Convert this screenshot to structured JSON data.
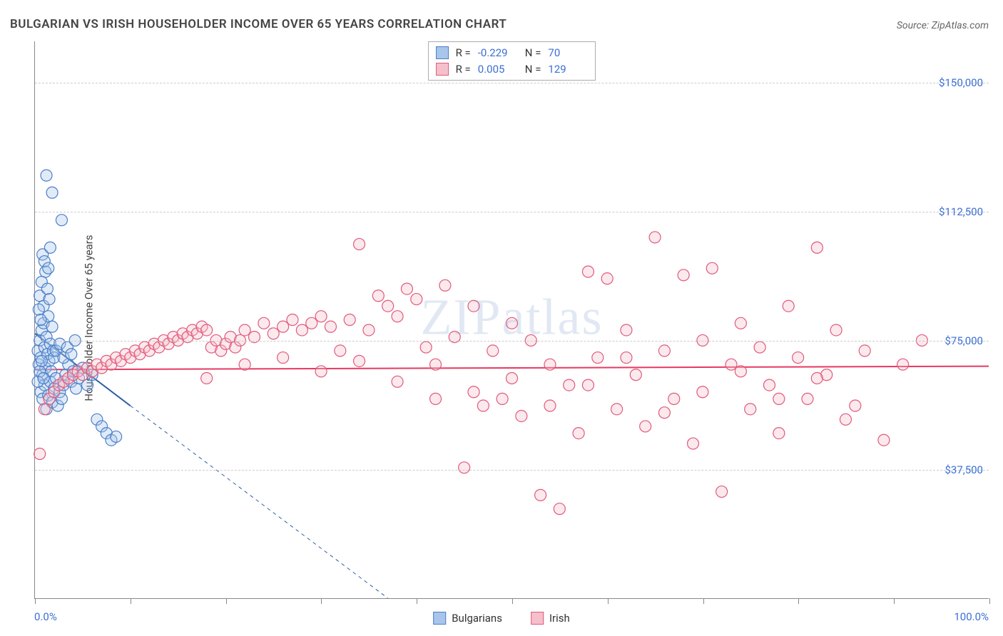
{
  "title": "BULGARIAN VS IRISH HOUSEHOLDER INCOME OVER 65 YEARS CORRELATION CHART",
  "source": "Source: ZipAtlas.com",
  "watermark": "ZIPatlas",
  "chart": {
    "type": "scatter",
    "ylabel": "Householder Income Over 65 years",
    "xlim": [
      0,
      100
    ],
    "ylim": [
      0,
      162000
    ],
    "x_axis_min_label": "0.0%",
    "x_axis_max_label": "100.0%",
    "xtick_positions": [
      0,
      10,
      20,
      30,
      40,
      50,
      60,
      70,
      80,
      90,
      100
    ],
    "y_gridlines": [
      {
        "value": 37500,
        "label": "$37,500"
      },
      {
        "value": 75000,
        "label": "$75,000"
      },
      {
        "value": 112500,
        "label": "$112,500"
      },
      {
        "value": 150000,
        "label": "$150,000"
      }
    ],
    "background_color": "#ffffff",
    "grid_color": "#cccccc",
    "axis_color": "#888888",
    "label_color": "#3b6fd6",
    "title_fontsize": 17,
    "axis_label_fontsize": 15,
    "marker_radius": 8,
    "marker_fill_opacity": 0.35,
    "marker_stroke_width": 1.2
  },
  "series": [
    {
      "name": "Bulgarians",
      "color_fill": "#a8c5ec",
      "color_stroke": "#4b7fc9",
      "trend": {
        "x1": 0,
        "y1": 77000,
        "x2_solid": 10,
        "y2_solid": 56000,
        "x2_dash": 37,
        "y2_dash": 0,
        "stroke": "#2f5fa8",
        "width": 2
      },
      "R": "-0.229",
      "N": "70",
      "points": [
        [
          0.3,
          72000
        ],
        [
          0.4,
          68000
        ],
        [
          0.5,
          75000
        ],
        [
          0.6,
          70000
        ],
        [
          0.7,
          78000
        ],
        [
          0.8,
          65000
        ],
        [
          0.9,
          80000
        ],
        [
          1.0,
          73000
        ],
        [
          1.1,
          67000
        ],
        [
          1.2,
          76000
        ],
        [
          1.3,
          71000
        ],
        [
          1.4,
          82000
        ],
        [
          1.5,
          69000
        ],
        [
          1.6,
          74000
        ],
        [
          1.7,
          66000
        ],
        [
          1.8,
          79000
        ],
        [
          1.9,
          72000
        ],
        [
          2.0,
          70000
        ],
        [
          0.5,
          88000
        ],
        [
          0.7,
          92000
        ],
        [
          0.9,
          85000
        ],
        [
          1.1,
          95000
        ],
        [
          1.3,
          90000
        ],
        [
          1.5,
          87000
        ],
        [
          0.6,
          60000
        ],
        [
          0.8,
          58000
        ],
        [
          1.0,
          62000
        ],
        [
          1.2,
          55000
        ],
        [
          1.4,
          59000
        ],
        [
          1.6,
          63000
        ],
        [
          1.8,
          57000
        ],
        [
          2.0,
          61000
        ],
        [
          2.2,
          64000
        ],
        [
          2.4,
          56000
        ],
        [
          2.6,
          60000
        ],
        [
          2.8,
          58000
        ],
        [
          3.0,
          62000
        ],
        [
          3.2,
          65000
        ],
        [
          3.5,
          68000
        ],
        [
          3.8,
          63000
        ],
        [
          4.0,
          66000
        ],
        [
          4.3,
          61000
        ],
        [
          4.6,
          64000
        ],
        [
          5.0,
          67000
        ],
        [
          5.5,
          62000
        ],
        [
          6.0,
          65000
        ],
        [
          6.5,
          52000
        ],
        [
          7.0,
          50000
        ],
        [
          7.5,
          48000
        ],
        [
          8.0,
          46000
        ],
        [
          8.5,
          47000
        ],
        [
          1.8,
          118000
        ],
        [
          2.8,
          110000
        ],
        [
          1.2,
          123000
        ],
        [
          0.8,
          100000
        ],
        [
          1.0,
          98000
        ],
        [
          1.4,
          96000
        ],
        [
          1.6,
          102000
        ],
        [
          0.4,
          84000
        ],
        [
          0.6,
          81000
        ],
        [
          2.2,
          72000
        ],
        [
          2.6,
          74000
        ],
        [
          3.0,
          70000
        ],
        [
          3.4,
          73000
        ],
        [
          3.8,
          71000
        ],
        [
          4.2,
          75000
        ],
        [
          0.3,
          63000
        ],
        [
          0.5,
          66000
        ],
        [
          0.7,
          69000
        ],
        [
          0.9,
          64000
        ]
      ]
    },
    {
      "name": "Irish",
      "color_fill": "#f5c0cc",
      "color_stroke": "#e05a7a",
      "trend": {
        "x1": 0,
        "y1": 66500,
        "x2_solid": 100,
        "y2_solid": 67500,
        "stroke": "#e63962",
        "width": 2
      },
      "R": "0.005",
      "N": "129",
      "points": [
        [
          0.5,
          42000
        ],
        [
          1.0,
          55000
        ],
        [
          1.5,
          58000
        ],
        [
          2.0,
          60000
        ],
        [
          2.5,
          62000
        ],
        [
          3.0,
          63000
        ],
        [
          3.5,
          64000
        ],
        [
          4.0,
          65000
        ],
        [
          4.5,
          66000
        ],
        [
          5.0,
          65000
        ],
        [
          5.5,
          67000
        ],
        [
          6.0,
          66000
        ],
        [
          6.5,
          68000
        ],
        [
          7.0,
          67000
        ],
        [
          7.5,
          69000
        ],
        [
          8.0,
          68000
        ],
        [
          8.5,
          70000
        ],
        [
          9.0,
          69000
        ],
        [
          9.5,
          71000
        ],
        [
          10.0,
          70000
        ],
        [
          10.5,
          72000
        ],
        [
          11.0,
          71000
        ],
        [
          11.5,
          73000
        ],
        [
          12.0,
          72000
        ],
        [
          12.5,
          74000
        ],
        [
          13.0,
          73000
        ],
        [
          13.5,
          75000
        ],
        [
          14.0,
          74000
        ],
        [
          14.5,
          76000
        ],
        [
          15.0,
          75000
        ],
        [
          15.5,
          77000
        ],
        [
          16.0,
          76000
        ],
        [
          16.5,
          78000
        ],
        [
          17.0,
          77000
        ],
        [
          17.5,
          79000
        ],
        [
          18.0,
          78000
        ],
        [
          18.5,
          73000
        ],
        [
          19.0,
          75000
        ],
        [
          19.5,
          72000
        ],
        [
          20.0,
          74000
        ],
        [
          20.5,
          76000
        ],
        [
          21.0,
          73000
        ],
        [
          21.5,
          75000
        ],
        [
          22.0,
          78000
        ],
        [
          23.0,
          76000
        ],
        [
          24.0,
          80000
        ],
        [
          25.0,
          77000
        ],
        [
          26.0,
          79000
        ],
        [
          27.0,
          81000
        ],
        [
          28.0,
          78000
        ],
        [
          29.0,
          80000
        ],
        [
          30.0,
          82000
        ],
        [
          31.0,
          79000
        ],
        [
          32.0,
          72000
        ],
        [
          33.0,
          81000
        ],
        [
          34.0,
          103000
        ],
        [
          35.0,
          78000
        ],
        [
          36.0,
          88000
        ],
        [
          37.0,
          85000
        ],
        [
          38.0,
          82000
        ],
        [
          39.0,
          90000
        ],
        [
          40.0,
          87000
        ],
        [
          41.0,
          73000
        ],
        [
          42.0,
          68000
        ],
        [
          43.0,
          91000
        ],
        [
          44.0,
          76000
        ],
        [
          45.0,
          38000
        ],
        [
          46.0,
          85000
        ],
        [
          47.0,
          56000
        ],
        [
          48.0,
          72000
        ],
        [
          49.0,
          58000
        ],
        [
          50.0,
          80000
        ],
        [
          51.0,
          53000
        ],
        [
          52.0,
          75000
        ],
        [
          53.0,
          30000
        ],
        [
          54.0,
          68000
        ],
        [
          55.0,
          26000
        ],
        [
          56.0,
          62000
        ],
        [
          57.0,
          48000
        ],
        [
          58.0,
          95000
        ],
        [
          59.0,
          70000
        ],
        [
          60.0,
          93000
        ],
        [
          61.0,
          55000
        ],
        [
          62.0,
          78000
        ],
        [
          63.0,
          65000
        ],
        [
          64.0,
          50000
        ],
        [
          65.0,
          105000
        ],
        [
          66.0,
          72000
        ],
        [
          67.0,
          58000
        ],
        [
          68.0,
          94000
        ],
        [
          69.0,
          45000
        ],
        [
          70.0,
          75000
        ],
        [
          71.0,
          96000
        ],
        [
          72.0,
          31000
        ],
        [
          73.0,
          68000
        ],
        [
          74.0,
          80000
        ],
        [
          75.0,
          55000
        ],
        [
          76.0,
          73000
        ],
        [
          77.0,
          62000
        ],
        [
          78.0,
          48000
        ],
        [
          79.0,
          85000
        ],
        [
          80.0,
          70000
        ],
        [
          81.0,
          58000
        ],
        [
          82.0,
          102000
        ],
        [
          83.0,
          65000
        ],
        [
          84.0,
          78000
        ],
        [
          85.0,
          52000
        ],
        [
          87.0,
          72000
        ],
        [
          89.0,
          46000
        ],
        [
          91.0,
          68000
        ],
        [
          93.0,
          75000
        ],
        [
          18.0,
          64000
        ],
        [
          22.0,
          68000
        ],
        [
          26.0,
          70000
        ],
        [
          30.0,
          66000
        ],
        [
          34.0,
          69000
        ],
        [
          38.0,
          63000
        ],
        [
          42.0,
          58000
        ],
        [
          46.0,
          60000
        ],
        [
          50.0,
          64000
        ],
        [
          54.0,
          56000
        ],
        [
          58.0,
          62000
        ],
        [
          62.0,
          70000
        ],
        [
          66.0,
          54000
        ],
        [
          70.0,
          60000
        ],
        [
          74.0,
          66000
        ],
        [
          78.0,
          58000
        ],
        [
          82.0,
          64000
        ],
        [
          86.0,
          56000
        ]
      ]
    }
  ],
  "stats_legend": {
    "rows": [
      {
        "swatch_fill": "#a8c5ec",
        "swatch_stroke": "#4b7fc9",
        "R_label": "R =",
        "R": "-0.229",
        "N_label": "N =",
        "N": "70"
      },
      {
        "swatch_fill": "#f5c0cc",
        "swatch_stroke": "#e05a7a",
        "R_label": "R =",
        "R": "0.005",
        "N_label": "N =",
        "N": "129"
      }
    ]
  },
  "bottom_legend": [
    {
      "swatch_fill": "#a8c5ec",
      "swatch_stroke": "#4b7fc9",
      "label": "Bulgarians"
    },
    {
      "swatch_fill": "#f5c0cc",
      "swatch_stroke": "#e05a7a",
      "label": "Irish"
    }
  ]
}
